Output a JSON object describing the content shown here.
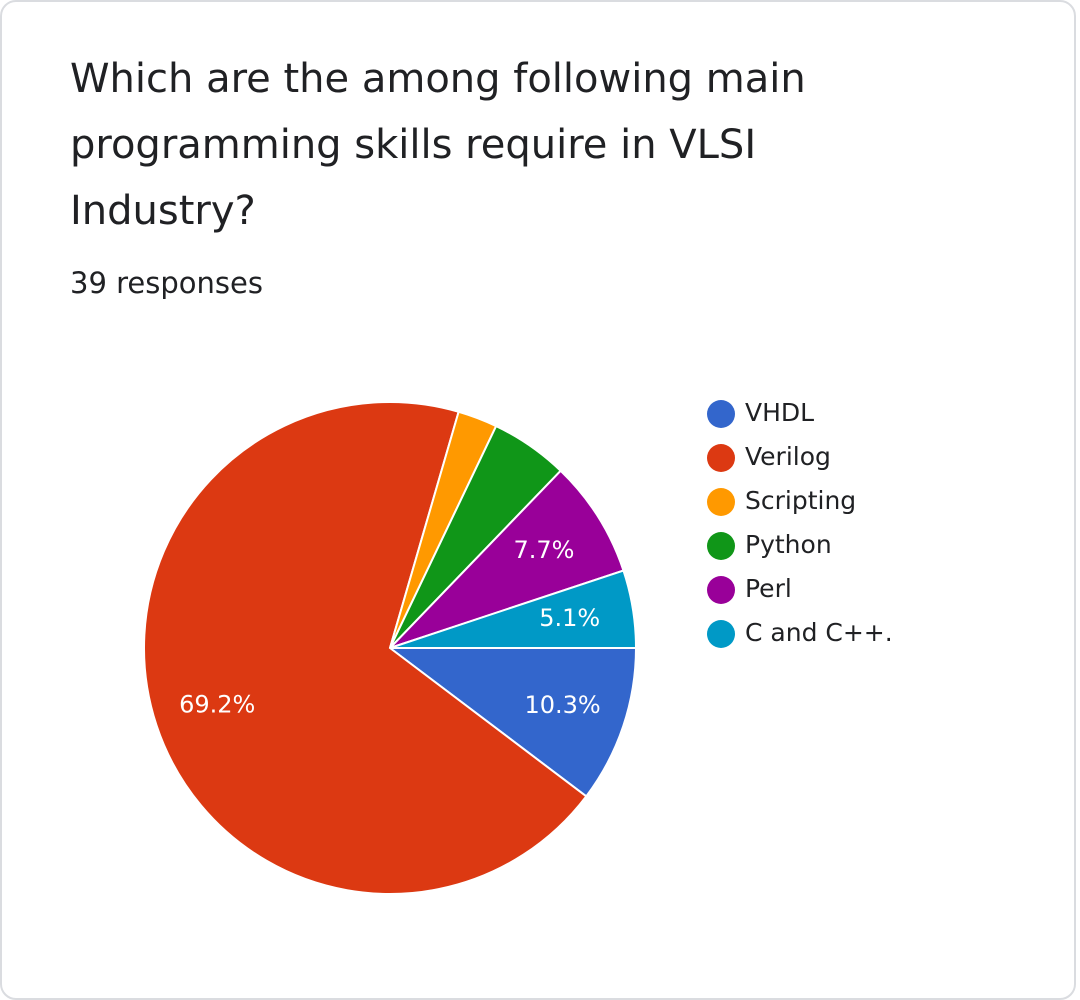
{
  "chart_data": {
    "type": "pie",
    "title": "Which are the among following main programming skills require in VLSI Industry?",
    "subtitle": "39 responses",
    "categories": [
      "VHDL",
      "Verilog",
      "Scripting",
      "Python",
      "Perl",
      "C and C++."
    ],
    "values": [
      10.3,
      69.2,
      2.6,
      5.1,
      7.7,
      5.1
    ],
    "value_labels": [
      "10.3%",
      "69.2%",
      null,
      null,
      "7.7%",
      "5.1%"
    ],
    "colors": [
      "#3366cc",
      "#dc3912",
      "#ff9900",
      "#109618",
      "#990099",
      "#0099c6"
    ],
    "legend": "right"
  }
}
